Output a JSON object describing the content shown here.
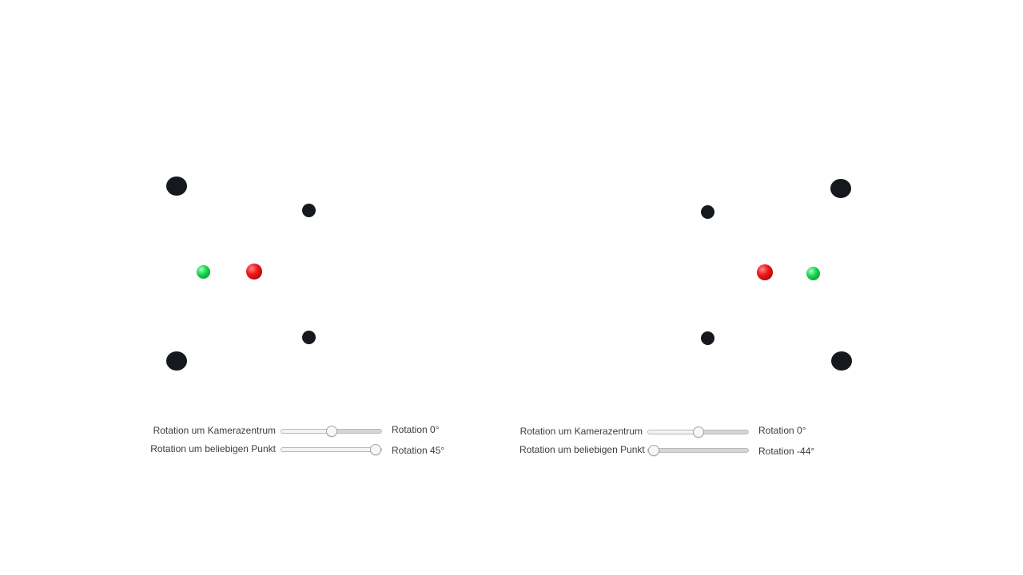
{
  "colors": {
    "marker": "#15191e",
    "red_sphere": "#e81616",
    "green_sphere": "#17d24c"
  },
  "left_panel": {
    "camera_rotation": {
      "label": "Rotation um Kamerazentrum",
      "readout": "Rotation 0°",
      "value_fraction": 0.5
    },
    "point_rotation": {
      "label": "Rotation um beliebigen Punkt",
      "readout": "Rotation 45°",
      "value_fraction": 1.0
    }
  },
  "right_panel": {
    "camera_rotation": {
      "label": "Rotation um Kamerazentrum",
      "readout": "Rotation 0°",
      "value_fraction": 0.5
    },
    "point_rotation": {
      "label": "Rotation um beliebigen Punkt",
      "readout": "Rotation -44°",
      "value_fraction": 0.0
    }
  }
}
